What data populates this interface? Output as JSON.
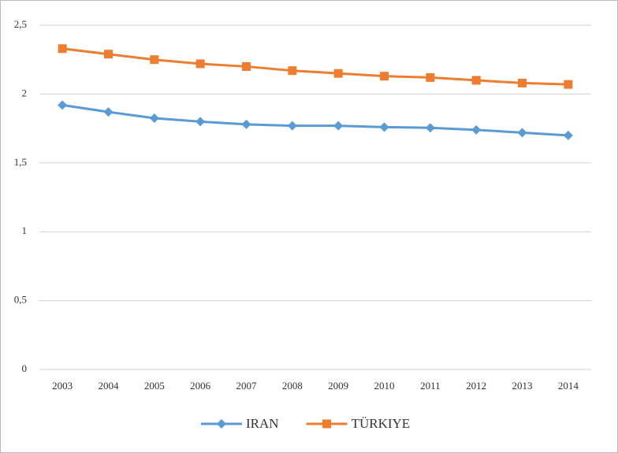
{
  "chart_data": {
    "type": "line",
    "categories": [
      "2003",
      "2004",
      "2005",
      "2006",
      "2007",
      "2008",
      "2009",
      "2010",
      "2011",
      "2012",
      "2013",
      "2014"
    ],
    "series": [
      {
        "name": "IRAN",
        "color": "#5b9bd5",
        "marker": "diamond",
        "values": [
          1.92,
          1.87,
          1.825,
          1.8,
          1.78,
          1.77,
          1.77,
          1.76,
          1.755,
          1.74,
          1.72,
          1.7
        ]
      },
      {
        "name": "TÜRKIYE",
        "color": "#ed7d31",
        "marker": "square",
        "values": [
          2.33,
          2.29,
          2.25,
          2.22,
          2.2,
          2.17,
          2.15,
          2.13,
          2.12,
          2.1,
          2.08,
          2.07
        ]
      }
    ],
    "ylim": [
      0,
      2.5
    ],
    "yticks": [
      0,
      {
        "value": 0.5,
        "label": "0,5"
      },
      1,
      {
        "value": 1.5,
        "label": "1,5"
      },
      2,
      {
        "value": 2.5,
        "label": "2,5"
      }
    ],
    "grid": true,
    "legend": "bottom"
  }
}
